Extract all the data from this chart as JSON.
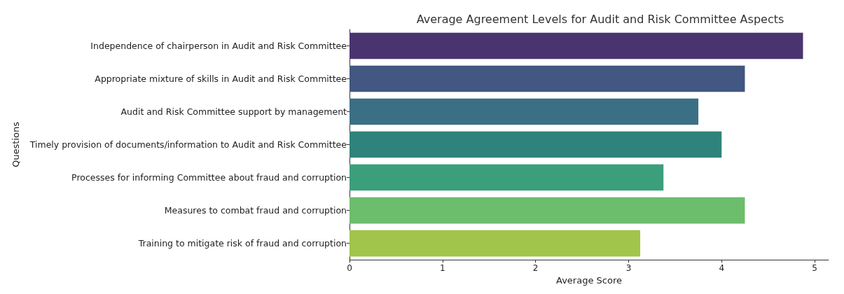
{
  "chart_data": {
    "type": "bar",
    "orientation": "horizontal",
    "title": "Average Agreement Levels for Audit and Risk Committee Aspects",
    "xlabel": "Average Score",
    "ylabel": "Questions",
    "categories": [
      "Independence of chairperson in Audit and Risk Committee",
      "Appropriate mixture of skills in Audit and Risk Committee",
      "Audit and Risk Committee support by management",
      "Timely provision of documents/information to Audit and Risk Committee",
      "Processes for informing Committee about fraud and corruption",
      "Measures to combat fraud and corruption",
      "Training to mitigate risk of fraud and corruption"
    ],
    "values": [
      4.875,
      4.25,
      3.75,
      4.0,
      3.375,
      4.25,
      3.125
    ],
    "colors": [
      "#4a3470",
      "#425781",
      "#3a6f85",
      "#2e837c",
      "#3b9f7c",
      "#6cbd6c",
      "#a1c54a"
    ],
    "xlim": [
      0,
      5.15
    ],
    "xticks": [
      0,
      1,
      2,
      3,
      4,
      5
    ],
    "grid": false
  }
}
